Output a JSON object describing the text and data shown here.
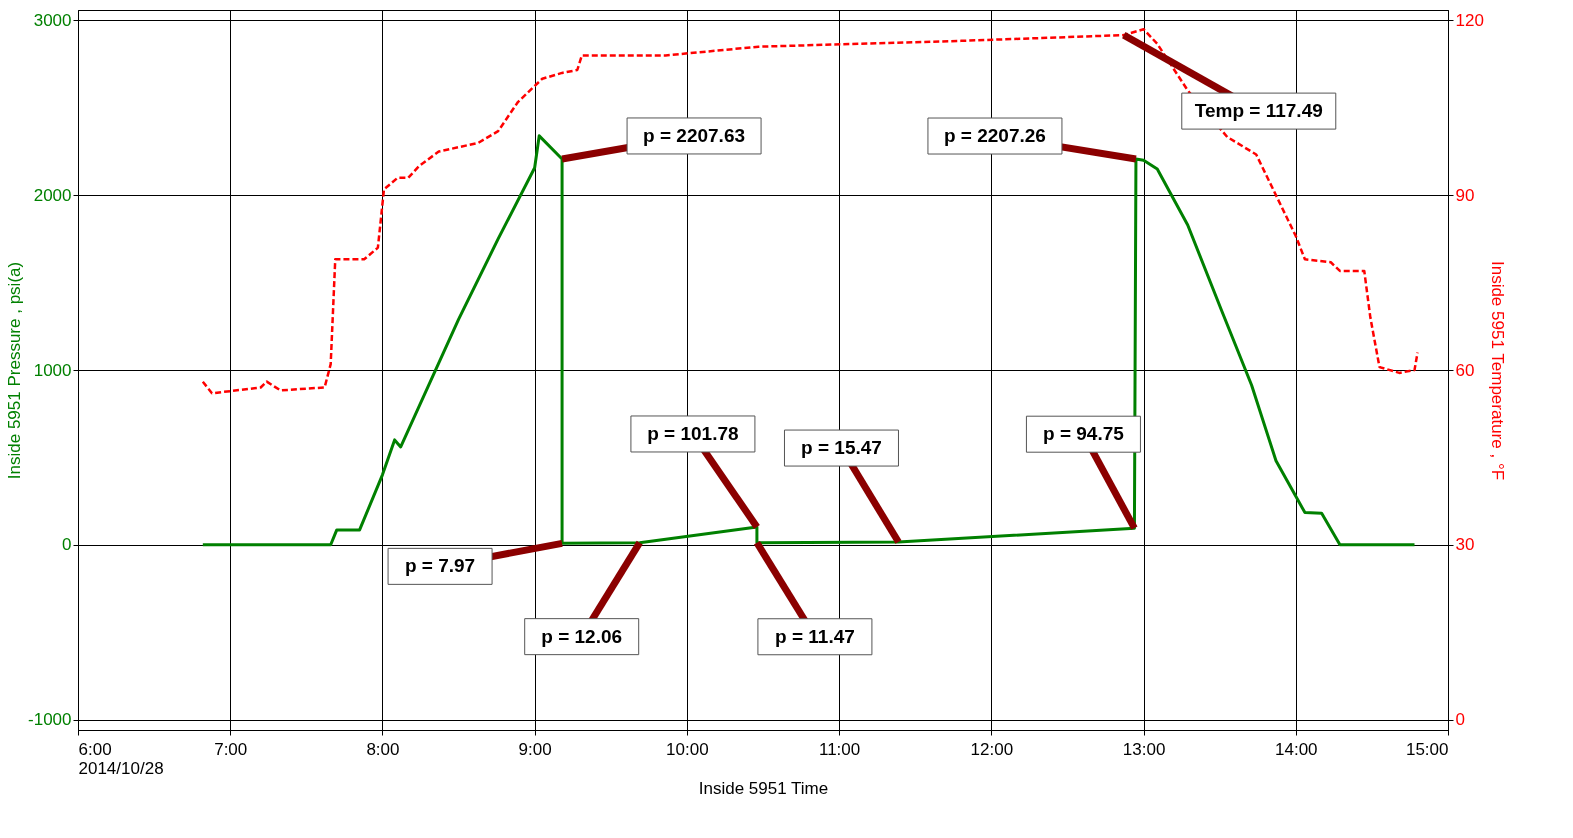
{
  "chart_data": {
    "type": "line",
    "xlabel": "Inside 5951 Time",
    "ylabel": "Inside 5951 Pressure , psi(a)",
    "y2label": "Inside 5951 Temperature , °F",
    "xlim": [
      6,
      15
    ],
    "xticks": [
      {
        "value": 6,
        "label": "6:00\n2014/10/28"
      },
      {
        "value": 7,
        "label": "7:00"
      },
      {
        "value": 8,
        "label": "8:00"
      },
      {
        "value": 9,
        "label": "9:00"
      },
      {
        "value": 10,
        "label": "10:00"
      },
      {
        "value": 11,
        "label": "11:00"
      },
      {
        "value": 12,
        "label": "12:00"
      },
      {
        "value": 13,
        "label": "13:00"
      },
      {
        "value": 14,
        "label": "14:00"
      },
      {
        "value": 15,
        "label": "15:00"
      }
    ],
    "ylim": [
      -1060,
      3060
    ],
    "yticks": [
      -1000,
      0,
      1000,
      2000,
      3000
    ],
    "y2lim": [
      -1.8,
      121.8
    ],
    "y2ticks": [
      0,
      30,
      60,
      90,
      120
    ],
    "grid": true,
    "series": [
      {
        "color": "#008000",
        "line_style": "solid",
        "x": [
          6.82,
          7.66,
          7.7,
          7.85,
          8.0,
          8.08,
          8.12,
          8.5,
          8.76,
          9.0,
          9.03,
          9.18,
          9.18,
          9.69,
          10.46,
          10.46,
          11.39,
          12.94,
          12.95,
          13.0,
          13.09,
          13.29,
          13.51,
          13.71,
          13.87,
          14.06,
          14.17,
          14.29,
          14.78
        ],
        "values": [
          0,
          0,
          85,
          85,
          400,
          600,
          560,
          1290,
          1750,
          2157,
          2340,
          2207.63,
          7.97,
          12.06,
          101.78,
          11.47,
          15.47,
          94.75,
          2207.26,
          2200,
          2150,
          1830,
          1346,
          913,
          481,
          184,
          180,
          0,
          0
        ]
      },
      {
        "color": "#ff0000",
        "axis": "y2",
        "line_style": "dashed",
        "x": [
          6.82,
          6.88,
          7.2,
          7.24,
          7.33,
          7.62,
          7.66,
          7.69,
          7.88,
          7.97,
          8.01,
          8.1,
          8.17,
          8.24,
          8.37,
          8.63,
          8.76,
          8.89,
          9.05,
          9.18,
          9.28,
          9.31,
          9.86,
          10.47,
          11.8,
          12.87,
          13.0,
          13.09,
          13.29,
          13.55,
          13.74,
          13.87,
          14.0,
          14.06,
          14.23,
          14.29,
          14.45,
          14.49,
          14.55,
          14.68,
          14.78,
          14.8
        ],
        "values": [
          58,
          56,
          57,
          58,
          56.5,
          57,
          61,
          79,
          79,
          81,
          91,
          93,
          93,
          95,
          97.5,
          99,
          101,
          106,
          110,
          111,
          111.5,
          114,
          114,
          115.5,
          116.5,
          117.49,
          118.5,
          116,
          108,
          100,
          97,
          90,
          83,
          79,
          78.5,
          77,
          77,
          69,
          60.5,
          59.5,
          60,
          63
        ]
      }
    ],
    "annotations": [
      "p = 2207.63",
      "p = 2207.26",
      "Temp = 117.49",
      "p = 101.78",
      "p = 15.47",
      "p = 94.75",
      "p = 7.97",
      "p = 12.06",
      "p = 11.47"
    ]
  }
}
